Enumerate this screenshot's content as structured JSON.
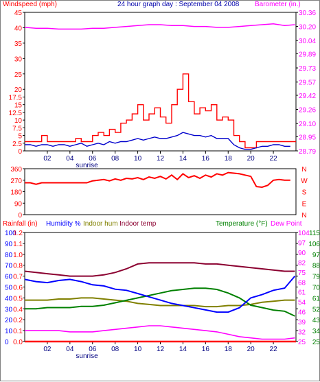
{
  "header": {
    "windspeed_label": "Windspeed (mph)",
    "title": "24 hour graph day : September 04 2008",
    "barometer_label": "Barometer (in.)"
  },
  "colors": {
    "windspeed": "#ff0000",
    "avg_wind": "#0000cc",
    "barometer": "#ff00ff",
    "wind_dir": "#ff0000",
    "rainfall": "#ff0000",
    "humidity": "#0000ff",
    "indoor_hum": "#808000",
    "indoor_temp": "#8b0030",
    "temperature": "#008000",
    "dew_point": "#ff00ff",
    "frame": "#000000",
    "background": "#ffffff"
  },
  "x_axis": {
    "ticks": [
      "02",
      "04",
      "06",
      "08",
      "10",
      "12",
      "14",
      "16",
      "18",
      "20",
      "22"
    ],
    "sunrise_label": "sunrise"
  },
  "direction_panel": {
    "right_labels": [
      "N",
      "W",
      "S",
      "E",
      "N"
    ]
  },
  "bottom_panel": {
    "rainfall_label": "Rainfall (in)",
    "humidity_label": "Humidity %",
    "indoor_hum_label": "Indoor hum",
    "indoor_temp_label": "Indoor temp",
    "temperature_label": "Temperature (°F)",
    "dew_point_label": "Dew Point"
  },
  "chart_data": [
    {
      "type": "line",
      "panel": "wind",
      "x_range": [
        0,
        24
      ],
      "ylim_left": [
        0,
        45
      ],
      "ylim_right": [
        28.79,
        30.36
      ],
      "y_ticks_left": [
        0,
        2.5,
        5,
        7.5,
        10,
        12.5,
        15,
        17.5,
        20,
        25,
        30,
        35,
        40,
        45
      ],
      "y_ticks_right": [
        "28.79",
        "28.95",
        "29.10",
        "29.26",
        "29.42",
        "29.57",
        "29.73",
        "29.89",
        "30.04",
        "30.20",
        "30.36"
      ],
      "series": [
        {
          "name": "Windspeed (mph)",
          "axis": "left",
          "x": [
            0,
            0.5,
            1,
            1.5,
            2,
            2.5,
            3,
            3.5,
            4,
            4.5,
            5,
            5.5,
            6,
            6.5,
            7,
            7.5,
            8,
            8.5,
            9,
            9.5,
            10,
            10.5,
            11,
            11.5,
            12,
            12.5,
            13,
            13.5,
            14,
            14.5,
            15,
            15.5,
            16,
            16.5,
            17,
            17.5,
            18,
            18.5,
            19,
            19.5,
            20,
            20.5,
            21,
            21.5,
            22,
            22.5,
            23,
            23.5
          ],
          "values": [
            3,
            3,
            3,
            5,
            3,
            3,
            3,
            3,
            3,
            4,
            3,
            3,
            5,
            6,
            5,
            7,
            6,
            9,
            10,
            12,
            15,
            10,
            12,
            14,
            11,
            9,
            15,
            20,
            25,
            16,
            12,
            14,
            13,
            15,
            10,
            11,
            10,
            5,
            3,
            1,
            1,
            3,
            3,
            3,
            3,
            3,
            3,
            3
          ]
        },
        {
          "name": "Average windspeed",
          "axis": "left",
          "x": [
            0,
            0.5,
            1,
            1.5,
            2,
            2.5,
            3,
            3.5,
            4,
            4.5,
            5,
            5.5,
            6,
            6.5,
            7,
            7.5,
            8,
            8.5,
            9,
            9.5,
            10,
            10.5,
            11,
            11.5,
            12,
            12.5,
            13,
            13.5,
            14,
            14.5,
            15,
            15.5,
            16,
            16.5,
            17,
            17.5,
            18,
            18.5,
            19,
            19.5,
            20,
            20.5,
            21,
            21.5,
            22,
            22.5,
            23,
            23.5
          ],
          "values": [
            2,
            2,
            1.5,
            2,
            2,
            1.5,
            2,
            2,
            1.5,
            2,
            2.5,
            1.5,
            2,
            2.5,
            2,
            3,
            2.5,
            3,
            3,
            3.5,
            4,
            3.5,
            4,
            4.5,
            4,
            4,
            4.5,
            5,
            6,
            5.5,
            5,
            5,
            4.5,
            5,
            4,
            4,
            4,
            2,
            1,
            0.5,
            0.5,
            1,
            1.5,
            1.5,
            2,
            2,
            1.5,
            1.5
          ]
        },
        {
          "name": "Barometer (in.)",
          "axis": "right",
          "x": [
            0,
            1,
            2,
            3,
            4,
            5,
            6,
            7,
            8,
            9,
            10,
            11,
            12,
            13,
            14,
            15,
            16,
            17,
            18,
            19,
            20,
            21,
            22,
            23,
            23.9
          ],
          "values": [
            30.19,
            30.18,
            30.18,
            30.17,
            30.17,
            30.17,
            30.18,
            30.18,
            30.19,
            30.2,
            30.21,
            30.22,
            30.22,
            30.21,
            30.21,
            30.2,
            30.2,
            30.19,
            30.19,
            30.2,
            30.21,
            30.22,
            30.23,
            30.21,
            30.22
          ]
        }
      ]
    },
    {
      "type": "line",
      "panel": "wind_direction",
      "x_range": [
        0,
        24
      ],
      "ylim_left": [
        0,
        360
      ],
      "y_ticks_left": [
        0,
        90,
        180,
        270,
        360
      ],
      "series": [
        {
          "name": "Wind direction",
          "x": [
            0,
            0.5,
            1,
            1.5,
            2,
            2.5,
            3,
            3.5,
            4,
            4.5,
            5,
            5.5,
            6,
            6.5,
            7,
            7.5,
            8,
            8.5,
            9,
            9.5,
            10,
            10.5,
            11,
            11.5,
            12,
            12.5,
            13,
            13.5,
            14,
            14.5,
            15,
            15.5,
            16,
            16.5,
            17,
            17.5,
            18,
            18.5,
            19,
            19.5,
            20,
            20.5,
            21,
            21.5,
            22,
            22.5,
            23,
            23.5
          ],
          "values": [
            250,
            250,
            238,
            250,
            250,
            250,
            250,
            250,
            250,
            250,
            250,
            250,
            265,
            270,
            275,
            265,
            280,
            270,
            285,
            280,
            290,
            275,
            295,
            285,
            300,
            280,
            310,
            275,
            320,
            290,
            305,
            285,
            310,
            295,
            320,
            310,
            330,
            325,
            320,
            310,
            300,
            220,
            215,
            230,
            270,
            275,
            270,
            270
          ]
        }
      ]
    },
    {
      "type": "line",
      "panel": "temperature_humidity",
      "x_range": [
        0,
        24
      ],
      "ylim_left_humidity": [
        0,
        100
      ],
      "ylim_left_rain": [
        0,
        1.2
      ],
      "ylim_right_temp": [
        25,
        115
      ],
      "y_ticks_humidity": [
        0,
        10,
        20,
        30,
        40,
        50,
        60,
        70,
        80,
        90,
        100
      ],
      "y_ticks_rain": [
        "0.0",
        "0.1",
        "0.2",
        "0.4",
        "0.5",
        "0.6",
        "0.7",
        "0.8",
        "1.0",
        "1.1",
        "1.2"
      ],
      "y_ticks_temp": [
        25,
        34,
        43,
        52,
        61,
        70,
        79,
        88,
        97,
        106,
        115
      ],
      "y_ticks_dew": [
        25,
        32,
        39,
        46,
        54,
        61,
        68,
        75,
        82,
        90,
        97,
        104
      ],
      "series": [
        {
          "name": "Rainfall (in)",
          "axis": "rain",
          "x": [
            0,
            24
          ],
          "values": [
            0,
            0
          ]
        },
        {
          "name": "Humidity %",
          "axis": "humidity",
          "x": [
            0,
            1,
            2,
            3,
            4,
            5,
            6,
            7,
            8,
            9,
            10,
            11,
            12,
            13,
            14,
            15,
            16,
            17,
            18,
            19,
            20,
            21,
            22,
            23,
            23.9
          ],
          "values": [
            57,
            55,
            54,
            56,
            57,
            55,
            52,
            51,
            48,
            47,
            44,
            41,
            38,
            35,
            33,
            31,
            29,
            27,
            27,
            31,
            40,
            43,
            47,
            49,
            60
          ]
        },
        {
          "name": "Indoor hum",
          "axis": "humidity",
          "x": [
            0,
            1,
            2,
            3,
            4,
            5,
            6,
            7,
            8,
            9,
            10,
            11,
            12,
            13,
            14,
            15,
            16,
            17,
            18,
            19,
            20,
            21,
            22,
            23,
            23.9
          ],
          "values": [
            38,
            38,
            38,
            39,
            39,
            40,
            40,
            39,
            38,
            37,
            35,
            34,
            33,
            33,
            33,
            33,
            32,
            32,
            33,
            33,
            34,
            36,
            37,
            38,
            38
          ]
        },
        {
          "name": "Indoor temp",
          "axis": "temp",
          "x": [
            0,
            1,
            2,
            3,
            4,
            5,
            6,
            7,
            8,
            9,
            10,
            11,
            12,
            13,
            14,
            15,
            16,
            17,
            18,
            19,
            20,
            21,
            22,
            23,
            23.9
          ],
          "values": [
            83,
            82,
            81,
            80,
            79,
            79,
            79,
            80,
            82,
            85,
            89,
            90,
            90,
            90,
            90,
            90,
            89,
            89,
            88,
            87,
            86,
            85,
            84,
            83,
            83
          ]
        },
        {
          "name": "Temperature (°F)",
          "axis": "temp",
          "x": [
            0,
            1,
            2,
            3,
            4,
            5,
            6,
            7,
            8,
            9,
            10,
            11,
            12,
            13,
            14,
            15,
            16,
            17,
            18,
            19,
            20,
            21,
            22,
            23,
            23.9
          ],
          "values": [
            52,
            52,
            53,
            53,
            53,
            54,
            54,
            55,
            57,
            59,
            61,
            63,
            65,
            67,
            68,
            69,
            69,
            68,
            65,
            61,
            55,
            53,
            51,
            50,
            46
          ]
        },
        {
          "name": "Dew Point",
          "axis": "temp",
          "x": [
            0,
            1,
            2,
            3,
            4,
            5,
            6,
            7,
            8,
            9,
            10,
            11,
            12,
            13,
            14,
            15,
            16,
            17,
            18,
            19,
            20,
            21,
            22,
            23,
            23.9
          ],
          "values": [
            34,
            34,
            34,
            34,
            33,
            33,
            33,
            34,
            35,
            36,
            37,
            38,
            38,
            37,
            36,
            35,
            34,
            33,
            31,
            29,
            28,
            27,
            27,
            27,
            28
          ]
        }
      ]
    }
  ]
}
